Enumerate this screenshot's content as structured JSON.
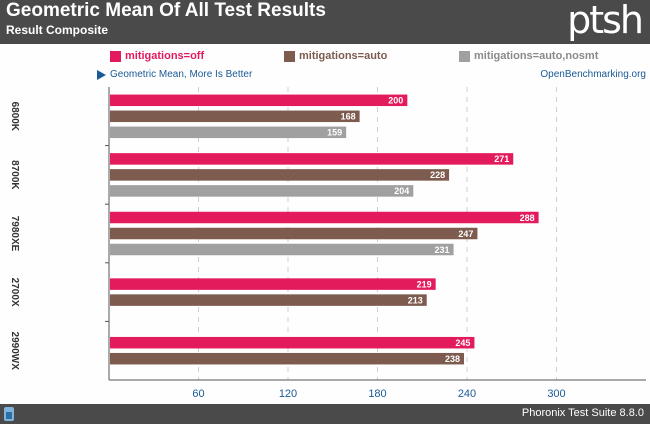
{
  "header": {
    "title": "Geometric Mean Of All Test Results",
    "subtitle": "Result Composite",
    "logo": "ptsh"
  },
  "note": "Geometric Mean, More Is Better",
  "source": "OpenBenchmarking.org",
  "footer": {
    "text": "Phoronix Test Suite 8.8.0"
  },
  "chart_data": {
    "type": "bar",
    "orientation": "horizontal",
    "title": "Geometric Mean Of All Test Results",
    "subtitle": "Result Composite",
    "xlabel": "",
    "ylabel": "",
    "xlim": [
      0,
      360
    ],
    "ticks": [
      60,
      120,
      180,
      240,
      300
    ],
    "grid": true,
    "legend_position": "top",
    "categories": [
      "6800K",
      "8700K",
      "7980XE",
      "2700X",
      "2990WX"
    ],
    "series": [
      {
        "name": "mitigations=off",
        "color": "#e31b5c",
        "values": [
          200,
          271,
          288,
          219,
          245
        ]
      },
      {
        "name": "mitigations=auto",
        "color": "#7d5b4e",
        "values": [
          168,
          228,
          247,
          213,
          238
        ]
      },
      {
        "name": "mitigations=auto,nosmt",
        "color": "#a0a0a0",
        "values": [
          159,
          204,
          231,
          null,
          null
        ]
      }
    ]
  }
}
